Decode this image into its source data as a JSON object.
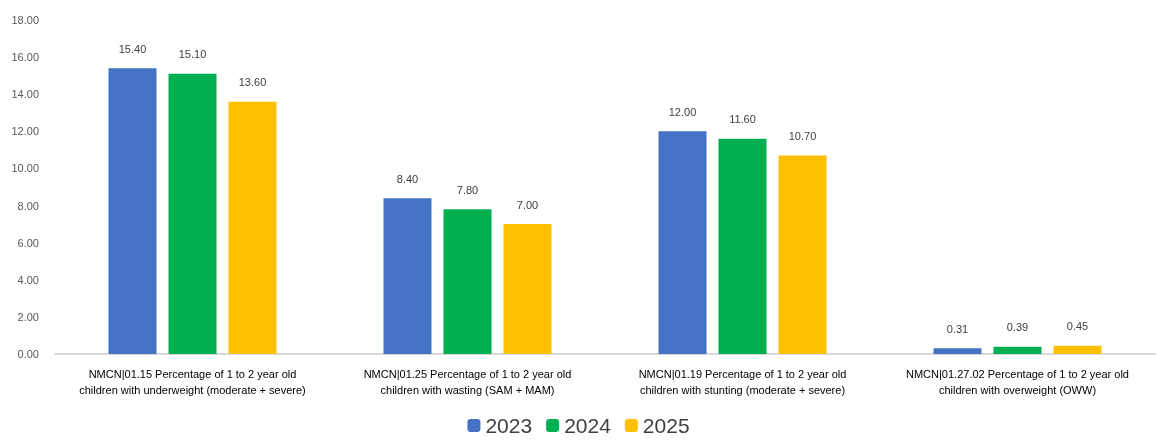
{
  "chart_data": {
    "type": "bar",
    "categories": [
      "NMCN|01.15 Percentage of 1 to 2 year old\nchildren with underweight (moderate + severe)",
      "NMCN|01.25 Percentage of 1 to 2 year old\nchildren with wasting (SAM + MAM)",
      "NMCN|01.19 Percentage of 1 to 2 year old\nchildren with stunting (moderate + severe)",
      "NMCN|01.27.02 Percentage of 1 to 2 year old\nchildren with overweight (OWW)"
    ],
    "series": [
      {
        "name": "2023",
        "color": "#4472c4",
        "values": [
          15.4,
          8.4,
          12.0,
          0.31
        ],
        "value_labels": [
          "15.40",
          "8.40",
          "12.00",
          "0.31"
        ]
      },
      {
        "name": "2024",
        "color": "#00b050",
        "values": [
          15.1,
          7.8,
          11.6,
          0.39
        ],
        "value_labels": [
          "15.10",
          "7.80",
          "11.60",
          "0.39"
        ]
      },
      {
        "name": "2025",
        "color": "#ffc000",
        "values": [
          13.6,
          7.0,
          10.7,
          0.45
        ],
        "value_labels": [
          "13.60",
          "7.00",
          "10.70",
          "0.45"
        ]
      }
    ],
    "ylim": [
      0,
      18
    ],
    "yticks": [
      {
        "value": 0,
        "label": "0.00"
      },
      {
        "value": 2,
        "label": "2.00"
      },
      {
        "value": 4,
        "label": "4.00"
      },
      {
        "value": 6,
        "label": "6.00"
      },
      {
        "value": 8,
        "label": "8.00"
      },
      {
        "value": 10,
        "label": "10.00"
      },
      {
        "value": 12,
        "label": "12.00"
      },
      {
        "value": 14,
        "label": "14.00"
      },
      {
        "value": 16,
        "label": "16.00"
      },
      {
        "value": 18,
        "label": "18.00"
      }
    ],
    "grid": false,
    "legend": "bottom"
  }
}
